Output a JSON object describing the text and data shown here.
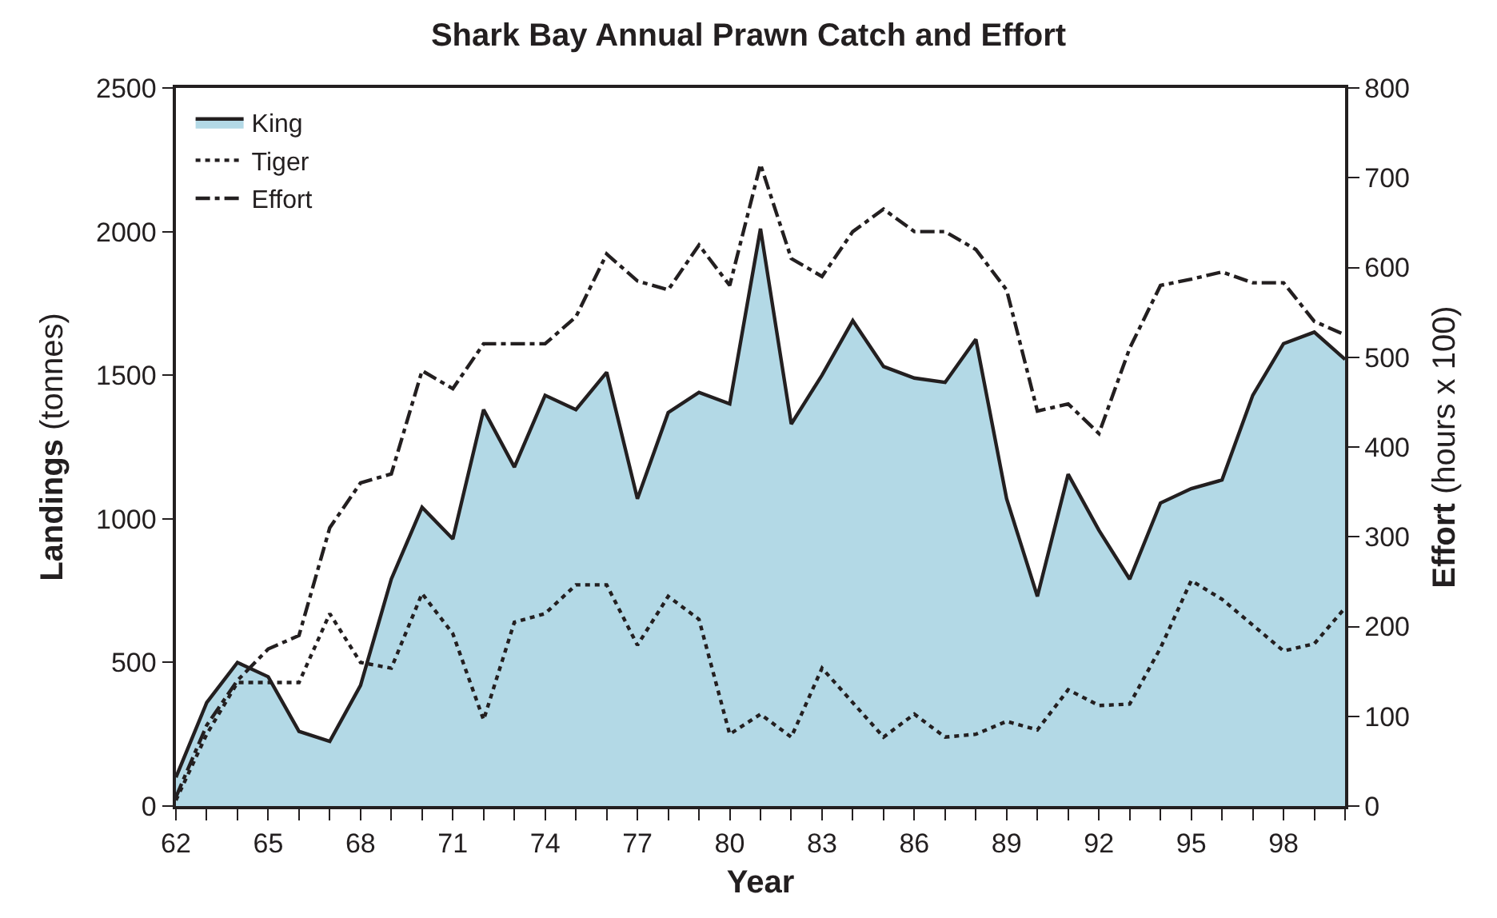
{
  "chart_data": {
    "type": "line",
    "title": "Shark Bay Annual Prawn Catch and Effort",
    "xlabel": "Year",
    "ylabel": "Landings (tonnes)",
    "y2label": "Effort (hours x 100)",
    "x": [
      62,
      63,
      64,
      65,
      66,
      67,
      68,
      69,
      70,
      71,
      72,
      73,
      74,
      75,
      76,
      77,
      78,
      79,
      80,
      81,
      82,
      83,
      84,
      85,
      86,
      87,
      88,
      89,
      90,
      91,
      92,
      93,
      94,
      95,
      96,
      97,
      98,
      99,
      100
    ],
    "series": [
      {
        "name": "King",
        "type": "area",
        "color": "#b3d9e6",
        "line_style": "solid",
        "values": [
          100,
          360,
          500,
          450,
          260,
          225,
          420,
          790,
          1040,
          930,
          1380,
          1180,
          1430,
          1380,
          1510,
          1070,
          1370,
          1440,
          1400,
          2010,
          1330,
          1500,
          1690,
          1530,
          1490,
          1475,
          1625,
          1070,
          730,
          1155,
          960,
          790,
          1055,
          1105,
          1135,
          1430,
          1610,
          1650,
          1555
        ]
      },
      {
        "name": "Tiger",
        "color": "#231f20",
        "line_style": "dotted",
        "values": [
          20,
          250,
          430,
          430,
          430,
          670,
          500,
          480,
          740,
          600,
          300,
          640,
          670,
          770,
          770,
          560,
          730,
          650,
          250,
          320,
          240,
          480,
          360,
          240,
          320,
          240,
          250,
          295,
          265,
          405,
          350,
          355,
          550,
          785,
          720,
          630,
          540,
          565,
          690
        ]
      },
      {
        "name": "Effort",
        "color": "#231f20",
        "line_style": "dashed",
        "axis": "y2",
        "values": [
          10,
          90,
          140,
          175,
          190,
          310,
          360,
          370,
          485,
          465,
          515,
          515,
          515,
          545,
          615,
          585,
          575,
          625,
          580,
          715,
          610,
          590,
          640,
          665,
          640,
          640,
          620,
          575,
          440,
          448,
          415,
          510,
          580,
          587,
          595,
          583,
          583,
          540,
          525
        ]
      }
    ],
    "xlim": [
      62,
      100
    ],
    "xticks": [
      62,
      {
        "value": 63,
        "label": null
      },
      {
        "value": 64,
        "label": null
      },
      65,
      {
        "value": 66,
        "label": null
      },
      {
        "value": 67,
        "label": null
      },
      68,
      {
        "value": 69,
        "label": null
      },
      {
        "value": 70,
        "label": null
      },
      71,
      {
        "value": 72,
        "label": null
      },
      {
        "value": 73,
        "label": null
      },
      74,
      {
        "value": 75,
        "label": null
      },
      {
        "value": 76,
        "label": null
      },
      77,
      {
        "value": 78,
        "label": null
      },
      {
        "value": 79,
        "label": null
      },
      80,
      {
        "value": 81,
        "label": null
      },
      {
        "value": 82,
        "label": null
      },
      83,
      {
        "value": 84,
        "label": null
      },
      {
        "value": 85,
        "label": null
      },
      86,
      {
        "value": 87,
        "label": null
      },
      {
        "value": 88,
        "label": null
      },
      89,
      {
        "value": 90,
        "label": null
      },
      {
        "value": 91,
        "label": null
      },
      92,
      {
        "value": 93,
        "label": null
      },
      {
        "value": 94,
        "label": null
      },
      95,
      {
        "value": 96,
        "label": null
      },
      {
        "value": 97,
        "label": null
      },
      98,
      {
        "value": 99,
        "label": null
      },
      {
        "value": 100,
        "label": null
      }
    ],
    "ylim": [
      0,
      2500
    ],
    "yticks": [
      0,
      500,
      1000,
      1500,
      2000,
      2500
    ],
    "y2lim": [
      0,
      800
    ],
    "y2ticks": [
      0,
      100,
      200,
      300,
      400,
      500,
      600,
      700,
      800
    ],
    "legend": "top left",
    "marker": "none"
  }
}
